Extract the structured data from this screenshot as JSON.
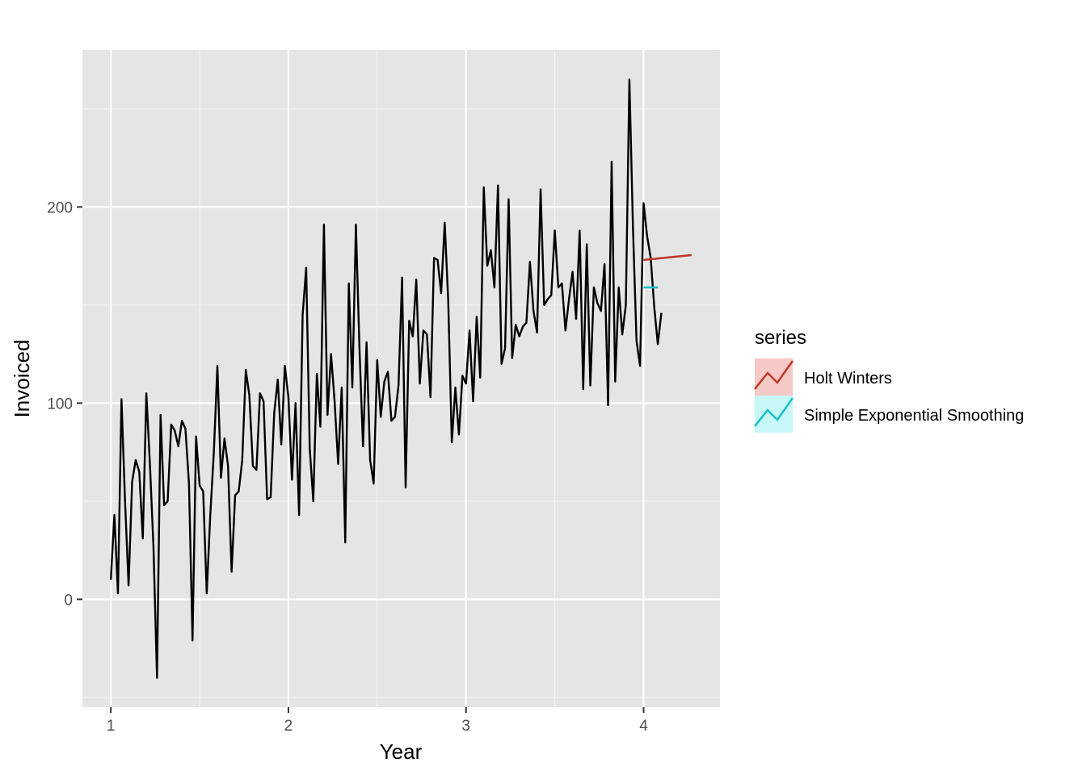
{
  "chart_data": {
    "type": "line",
    "xlabel": "Year",
    "ylabel": "Invoiced",
    "xlim": [
      0.84,
      4.43
    ],
    "ylim": [
      -55,
      280
    ],
    "x_ticks": [
      1,
      2,
      3,
      4
    ],
    "y_ticks": [
      0,
      100,
      200
    ],
    "x_tick_labels": [
      "1",
      "2",
      "3",
      "4"
    ],
    "y_tick_labels": [
      "0",
      "100",
      "200"
    ],
    "grid": true,
    "legend": {
      "title": "series",
      "position": "right",
      "entries": [
        {
          "label": "Holt Winters",
          "color": "#c0392b",
          "fill": "#f5c9c5"
        },
        {
          "label": "Simple Exponential Smoothing",
          "color": "#17bfc9",
          "fill": "#c8f7f8"
        }
      ]
    },
    "series": [
      {
        "x_start": 1.0,
        "x_step": 0.02,
        "color": "#000000",
        "values": [
          10,
          43,
          3,
          102,
          50,
          7,
          60,
          71,
          65,
          31,
          105,
          69,
          27,
          -40,
          94,
          48,
          50,
          89,
          86,
          78,
          91,
          87,
          59,
          -21,
          83,
          58,
          55,
          3,
          43,
          75,
          119,
          62,
          82,
          68,
          14,
          53,
          55,
          71,
          117,
          104,
          68,
          66,
          105,
          101,
          51,
          52,
          95,
          112,
          79,
          119,
          103,
          61,
          100,
          43,
          145,
          169,
          77,
          50,
          115,
          88,
          191,
          94,
          125,
          101,
          69,
          108,
          29,
          161,
          108,
          191,
          128,
          78,
          131,
          71,
          59,
          122,
          93,
          111,
          116,
          91,
          93,
          109,
          164,
          57,
          142,
          134,
          163,
          110,
          137,
          135,
          103,
          174,
          173,
          156,
          192,
          152,
          80,
          108,
          84,
          114,
          110,
          137,
          101,
          144,
          113,
          210,
          170,
          178,
          159,
          211,
          120,
          128,
          204,
          123,
          140,
          134,
          139,
          141,
          172,
          147,
          136,
          209,
          150,
          153,
          155,
          188,
          159,
          161,
          137,
          153,
          167,
          143,
          188,
          107,
          181,
          109,
          159,
          151,
          147,
          171,
          99,
          223,
          111,
          159,
          135,
          150,
          265,
          190,
          132,
          119,
          202,
          185,
          174,
          149,
          130,
          146
        ]
      },
      {
        "name": "Holt Winters",
        "color": "#c0392b",
        "x": [
          4.0,
          4.27
        ],
        "values": [
          173,
          175.5
        ]
      },
      {
        "name": "Simple Exponential Smoothing",
        "color": "#17bfc9",
        "x": [
          4.0,
          4.08
        ],
        "values": [
          159,
          159
        ]
      }
    ]
  }
}
